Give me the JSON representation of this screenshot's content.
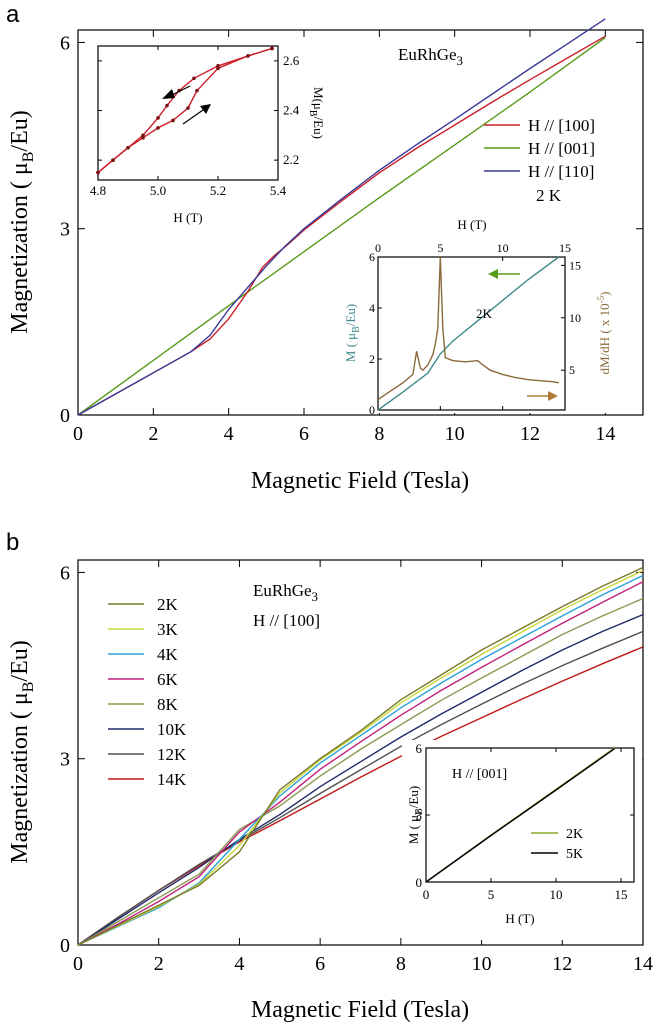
{
  "chart_data": [
    {
      "panel": "a",
      "type": "line",
      "title": "EuRhGe3",
      "xlabel": "Magnetic Field (Tesla)",
      "ylabel": "Magnetization ( μB/Eu)",
      "xlim": [
        0,
        15
      ],
      "ylim": [
        0,
        6.2
      ],
      "xticks": [
        0,
        2,
        4,
        6,
        8,
        10,
        12,
        14
      ],
      "yticks": [
        0,
        3,
        6
      ],
      "annotation": "2 K",
      "legend_position": "right",
      "series": [
        {
          "name": "H // [100]",
          "color": "#cc1f2a",
          "x": [
            0,
            1,
            2,
            3,
            3.5,
            4,
            4.5,
            4.9,
            5.2,
            5.6,
            6,
            7,
            8,
            9,
            10,
            11,
            12,
            13,
            14
          ],
          "y": [
            0,
            0.34,
            0.68,
            1.02,
            1.22,
            1.55,
            1.98,
            2.38,
            2.56,
            2.76,
            2.98,
            3.45,
            3.9,
            4.3,
            4.67,
            5.04,
            5.4,
            5.75,
            6.1
          ]
        },
        {
          "name": "H // [001]",
          "color": "#5a9a1a",
          "x": [
            0,
            2,
            4,
            6,
            8,
            10,
            12,
            14
          ],
          "y": [
            0,
            0.88,
            1.76,
            2.63,
            3.5,
            4.35,
            5.2,
            6.08
          ]
        },
        {
          "name": "H // [110]",
          "color": "#3a3a9a",
          "x": [
            0,
            1,
            2,
            3,
            3.5,
            4,
            4.5,
            5,
            5.5,
            6,
            7,
            8,
            9,
            10,
            11,
            12,
            13,
            14
          ],
          "y": [
            0,
            0.34,
            0.68,
            1.02,
            1.28,
            1.7,
            2.05,
            2.4,
            2.72,
            3.0,
            3.48,
            3.94,
            4.36,
            4.76,
            5.17,
            5.58,
            5.98,
            6.38
          ]
        }
      ],
      "insets": [
        {
          "type": "line",
          "xlabel": "H (T)",
          "ylabel": "M (μB/Eu)",
          "xlim": [
            4.8,
            5.4
          ],
          "ylim": [
            2.12,
            2.66
          ],
          "xticks": [
            4.8,
            5.0,
            5.2,
            5.4
          ],
          "yticks": [
            2.2,
            2.4,
            2.6
          ],
          "color": "#cc1f2a",
          "series": [
            {
              "name": "",
              "x": [
                4.8,
                4.85,
                4.9,
                4.95,
                5.0,
                5.03,
                5.07,
                5.12,
                5.2,
                5.3,
                5.38
              ],
              "y": [
                2.15,
                2.2,
                2.25,
                2.3,
                2.37,
                2.42,
                2.48,
                2.53,
                2.58,
                2.62,
                2.65
              ]
            },
            {
              "name": "",
              "x": [
                4.8,
                4.85,
                4.9,
                4.95,
                5.0,
                5.05,
                5.1,
                5.13,
                5.2,
                5.3,
                5.38
              ],
              "y": [
                2.15,
                2.2,
                2.25,
                2.29,
                2.33,
                2.36,
                2.41,
                2.48,
                2.57,
                2.62,
                2.65
              ]
            }
          ]
        },
        {
          "type": "line",
          "xlabel": "H (T)",
          "ylabel": "M ( μB/Eu)",
          "ylabel_right": "dM/dH ( x 10⁻⁵)",
          "annotation": "2K",
          "xlim": [
            0,
            15
          ],
          "ylim": [
            0,
            6
          ],
          "ylim_right": [
            1.2,
            15.8
          ],
          "xticks": [
            0,
            5,
            10,
            15
          ],
          "yticks": [
            0,
            2,
            4,
            6
          ],
          "yticks_right": [
            5,
            10,
            15
          ],
          "series": [
            {
              "name": "M",
              "color": "#3f8a8c",
              "x": [
                0,
                2,
                4,
                5,
                6,
                8,
                10,
                12,
                14.5
              ],
              "y": [
                0,
                0.7,
                1.45,
                2.2,
                2.7,
                3.5,
                4.3,
                5.1,
                6.0
              ]
            },
            {
              "name": "dM/dH",
              "color": "#8a6a3a",
              "x": [
                0,
                1,
                2,
                2.8,
                3.1,
                3.4,
                3.6,
                4.0,
                4.4,
                4.6,
                4.8,
                5.0,
                5.2,
                5.4,
                6,
                7,
                8,
                8.3,
                9,
                10,
                11,
                12,
                13,
                14,
                14.5
              ],
              "y": [
                2.2,
                3.0,
                3.8,
                4.6,
                6.8,
                5.2,
                5.0,
                5.5,
                6.5,
                7.5,
                9.0,
                15.8,
                9.0,
                6.2,
                5.9,
                5.8,
                5.9,
                5.6,
                5.0,
                4.6,
                4.3,
                4.1,
                4.0,
                3.9,
                3.8
              ]
            }
          ]
        }
      ]
    },
    {
      "panel": "b",
      "type": "line",
      "title": "EuRhGe3",
      "subtitle": "H // [100]",
      "xlabel": "Magnetic Field (Tesla)",
      "ylabel": "Magnetization ( μB/Eu)",
      "xlim": [
        0,
        14
      ],
      "ylim": [
        0,
        6.2
      ],
      "xticks": [
        0,
        2,
        4,
        6,
        8,
        10,
        12,
        14
      ],
      "yticks": [
        0,
        3,
        6
      ],
      "legend_position": "left",
      "x": [
        0,
        1,
        2,
        3,
        4,
        5,
        6,
        7,
        8,
        9,
        10,
        11,
        12,
        13,
        14
      ],
      "series": [
        {
          "name": "2K",
          "color": "#7a7a2a",
          "y": [
            0,
            0.32,
            0.64,
            0.96,
            1.5,
            2.5,
            3.0,
            3.45,
            3.95,
            4.35,
            4.75,
            5.1,
            5.45,
            5.78,
            6.08
          ]
        },
        {
          "name": "3K",
          "color": "#c8d63a",
          "y": [
            0,
            0.31,
            0.62,
            0.98,
            1.6,
            2.45,
            2.98,
            3.42,
            3.9,
            4.3,
            4.68,
            5.04,
            5.4,
            5.72,
            6.03
          ]
        },
        {
          "name": "4K",
          "color": "#2aa0d8",
          "y": [
            0,
            0.3,
            0.6,
            1.0,
            1.7,
            2.4,
            2.93,
            3.37,
            3.82,
            4.22,
            4.6,
            4.95,
            5.3,
            5.64,
            5.95
          ]
        },
        {
          "name": "6K",
          "color": "#c0207a",
          "y": [
            0,
            0.34,
            0.7,
            1.1,
            1.82,
            2.3,
            2.83,
            3.27,
            3.7,
            4.1,
            4.47,
            4.83,
            5.18,
            5.52,
            5.85
          ]
        },
        {
          "name": "8K",
          "color": "#8a9a50",
          "y": [
            0,
            0.38,
            0.76,
            1.14,
            1.86,
            2.24,
            2.72,
            3.15,
            3.55,
            3.94,
            4.3,
            4.65,
            5.0,
            5.3,
            5.58
          ]
        },
        {
          "name": "10K",
          "color": "#1e2a6a",
          "y": [
            0,
            0.42,
            0.84,
            1.25,
            1.7,
            2.1,
            2.55,
            2.95,
            3.35,
            3.72,
            4.07,
            4.42,
            4.75,
            5.05,
            5.32
          ]
        },
        {
          "name": "12K",
          "color": "#505050",
          "y": [
            0,
            0.45,
            0.88,
            1.3,
            1.68,
            2.05,
            2.44,
            2.82,
            3.2,
            3.55,
            3.88,
            4.2,
            4.5,
            4.78,
            5.05
          ]
        },
        {
          "name": "14K",
          "color": "#c01818",
          "y": [
            0,
            0.45,
            0.88,
            1.28,
            1.66,
            2.0,
            2.35,
            2.7,
            3.04,
            3.36,
            3.66,
            3.96,
            4.25,
            4.53,
            4.8
          ]
        }
      ],
      "insets": [
        {
          "type": "line",
          "subtitle": "H // [001]",
          "xlabel": "H (T)",
          "ylabel": "M ( μB/Eu)",
          "xlim": [
            0,
            16
          ],
          "ylim": [
            0,
            6
          ],
          "xticks": [
            0,
            5,
            10,
            15
          ],
          "yticks": [
            0,
            3,
            6
          ],
          "legend_position": "bottom-right",
          "series": [
            {
              "name": "2K",
              "color": "#8aaa30",
              "x": [
                0,
                5,
                10,
                14.5
              ],
              "y": [
                0,
                2.1,
                4.15,
                6.0
              ]
            },
            {
              "name": "5K",
              "color": "#000000",
              "x": [
                0,
                5,
                10,
                14.5
              ],
              "y": [
                0,
                2.08,
                4.12,
                5.97
              ]
            }
          ]
        }
      ]
    }
  ],
  "labels": {
    "panel_a": "a",
    "panel_b": "b",
    "a_title_main": "EuRhGe",
    "a_title_sub": "3",
    "a_temp": "2 K",
    "a_xlabel": "Magnetic Field (Tesla)",
    "a_ylabel_main": "Magnetization ( μ",
    "a_ylabel_sub": "B",
    "a_ylabel_end": "/Eu)",
    "a_leg_100": "H // [100]",
    "a_leg_001": "H // [001]",
    "a_leg_110": "H // [110]",
    "a_in1_xlabel": "H (T)",
    "a_in1_ylabel_main": "M(μ",
    "a_in1_ylabel_sub": "B",
    "a_in1_ylabel_end": "/Eu)",
    "a_in2_xlabel": "H (T)",
    "a_in2_ylabel_main": "M ( μ",
    "a_in2_ylabel_sub": "B",
    "a_in2_ylabel_end": "/Eu)",
    "a_in2_ylabel_right_main": "dM/dH ( x 10",
    "a_in2_ylabel_right_sup": "-5",
    "a_in2_ylabel_right_end": ")",
    "a_in2_temp": "2K",
    "b_title_main": "EuRhGe",
    "b_title_sub": "3",
    "b_subtitle": "H // [100]",
    "b_xlabel": "Magnetic Field (Tesla)",
    "b_ylabel_main": "Magnetization ( μ",
    "b_ylabel_sub": "B",
    "b_ylabel_end": "/Eu)",
    "b_in_subtitle": "H // [001]",
    "b_in_xlabel": "H (T)",
    "b_in_ylabel_main": "M ( μ",
    "b_in_ylabel_sub": "B",
    "b_in_ylabel_end": "/Eu)"
  }
}
